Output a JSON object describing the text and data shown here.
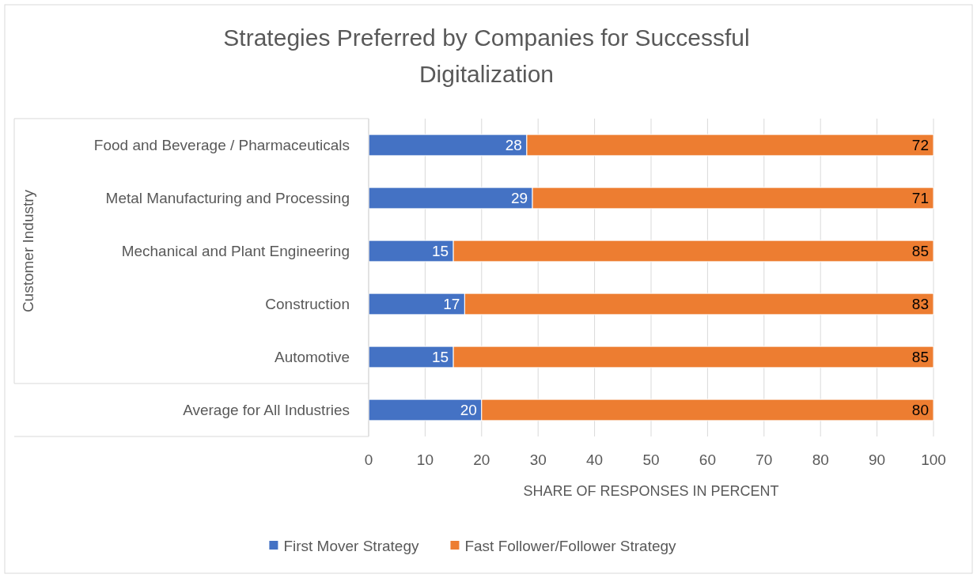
{
  "chart_data": {
    "type": "bar",
    "orientation": "horizontal",
    "stacked": true,
    "title": "Strategies Preferred by Companies for Successful Digitalization",
    "xlabel": "SHARE OF RESPONSES IN PERCENT",
    "ylabel": "Customer Industry",
    "categories": [
      "Food and Beverage / Pharmaceuticals",
      "Metal Manufacturing and Processing",
      "Mechanical and Plant Engineering",
      "Construction",
      "Automotive",
      "Average for All Industries"
    ],
    "series": [
      {
        "name": "First Mover Strategy",
        "color": "#4472c4",
        "values": [
          28,
          29,
          15,
          17,
          15,
          20
        ]
      },
      {
        "name": "Fast Follower/Follower Strategy",
        "color": "#ed7d31",
        "values": [
          72,
          71,
          85,
          83,
          85,
          80
        ]
      }
    ],
    "xlim": [
      0,
      100
    ],
    "xticks": [
      0,
      10,
      20,
      30,
      40,
      50,
      60,
      70,
      80,
      90,
      100
    ],
    "grid": "x",
    "legend": "bottom",
    "data_labels": true
  }
}
